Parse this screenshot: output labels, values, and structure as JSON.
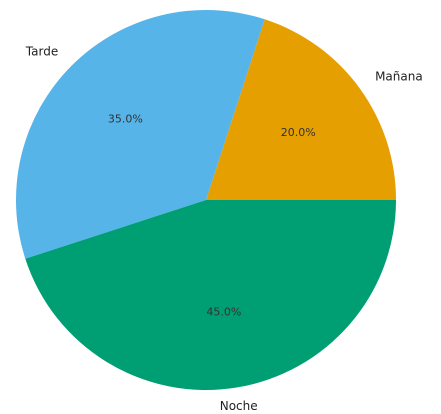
{
  "chart_data": {
    "type": "pie",
    "slices": [
      {
        "label": "Mañana",
        "value": 20.0,
        "pct_label": "20.0%",
        "color": "#E69F00"
      },
      {
        "label": "Tarde",
        "value": 35.0,
        "pct_label": "35.0%",
        "color": "#56B4E9"
      },
      {
        "label": "Noche",
        "value": 45.0,
        "pct_label": "45.0%",
        "color": "#009E73"
      }
    ],
    "start_angle_deg": 0,
    "direction": "counterclockwise",
    "legend": "none"
  }
}
